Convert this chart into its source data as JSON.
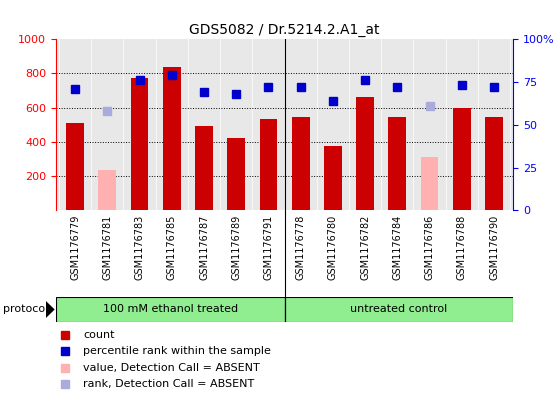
{
  "title": "GDS5082 / Dr.5214.2.A1_at",
  "samples": [
    "GSM1176779",
    "GSM1176781",
    "GSM1176783",
    "GSM1176785",
    "GSM1176787",
    "GSM1176789",
    "GSM1176791",
    "GSM1176778",
    "GSM1176780",
    "GSM1176782",
    "GSM1176784",
    "GSM1176786",
    "GSM1176788",
    "GSM1176790"
  ],
  "count_values": [
    510,
    235,
    775,
    840,
    490,
    420,
    535,
    545,
    375,
    665,
    545,
    310,
    600,
    545
  ],
  "rank_values": [
    71,
    null,
    76,
    79,
    69,
    68,
    72,
    72,
    64,
    76,
    72,
    null,
    73,
    72
  ],
  "absent_count": [
    null,
    235,
    null,
    null,
    null,
    null,
    null,
    null,
    null,
    null,
    null,
    310,
    null,
    null
  ],
  "absent_rank": [
    null,
    58,
    null,
    null,
    null,
    null,
    null,
    null,
    null,
    null,
    null,
    61,
    null,
    null
  ],
  "bar_color_present": "#cc0000",
  "bar_color_absent": "#ffb0b0",
  "dot_color_present": "#0000cc",
  "dot_color_absent": "#aaaadd",
  "protocol_color": "#90ee90",
  "ylim_left": [
    0,
    1000
  ],
  "ylim_right": [
    0,
    100
  ],
  "yticks_left": [
    200,
    400,
    600,
    800,
    1000
  ],
  "ytick_labels_left": [
    "200",
    "400",
    "600",
    "800",
    "1000"
  ],
  "yticks_right": [
    0,
    25,
    50,
    75,
    100
  ],
  "ytick_labels_right": [
    "0",
    "25",
    "50",
    "75",
    "100%"
  ],
  "grid_lines": [
    200,
    400,
    600,
    800
  ],
  "background_color": "#e8e8e8",
  "protocol_groups": [
    {
      "label": "100 mM ethanol treated",
      "start": 0,
      "end": 7
    },
    {
      "label": "untreated control",
      "start": 7,
      "end": 14
    }
  ],
  "legend_items": [
    {
      "color": "#cc0000",
      "label": "count"
    },
    {
      "color": "#0000cc",
      "label": "percentile rank within the sample"
    },
    {
      "color": "#ffb0b0",
      "label": "value, Detection Call = ABSENT"
    },
    {
      "color": "#aaaadd",
      "label": "rank, Detection Call = ABSENT"
    }
  ]
}
